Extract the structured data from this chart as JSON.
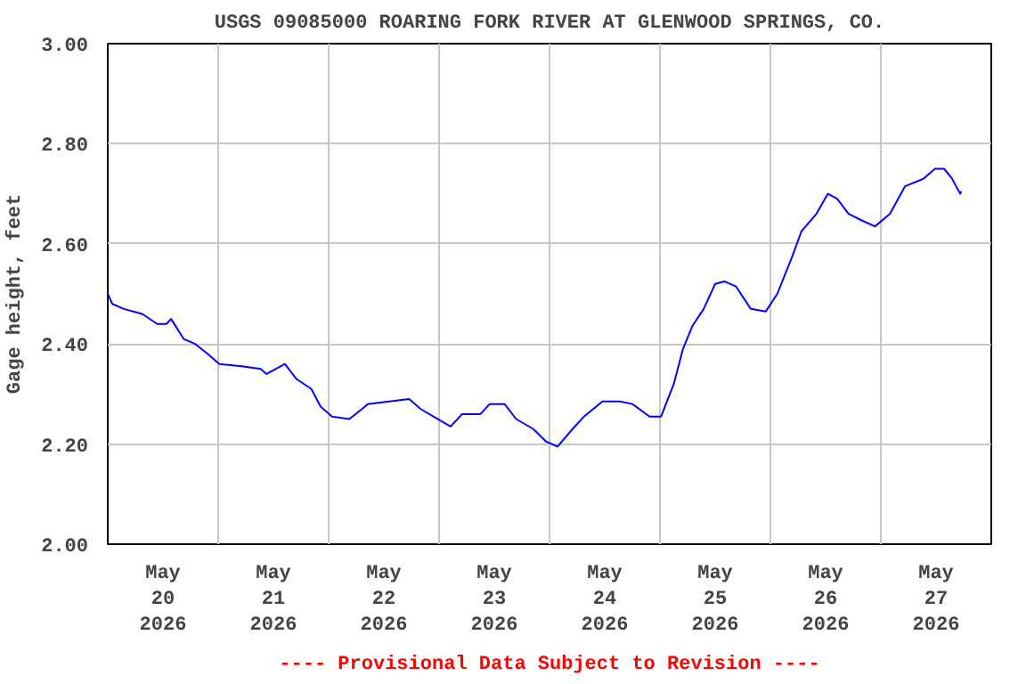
{
  "chart_data": {
    "type": "line",
    "title": "USGS 09085000 ROARING FORK RIVER AT GLENWOOD SPRINGS, CO.",
    "ylabel": "Gage height, feet",
    "annotations": [
      "---- Provisional Data Subject to Revision ----"
    ],
    "x": [
      "2026-05-20T00:00",
      "2026-05-20T01:00",
      "2026-05-20T03:30",
      "2026-05-20T07:30",
      "2026-05-20T10:45",
      "2026-05-20T12:45",
      "2026-05-20T13:45",
      "2026-05-20T16:30",
      "2026-05-20T19:00",
      "2026-05-20T21:45",
      "2026-05-21T00:15",
      "2026-05-21T05:30",
      "2026-05-21T09:15",
      "2026-05-21T10:30",
      "2026-05-21T14:30",
      "2026-05-21T17:00",
      "2026-05-21T20:15",
      "2026-05-21T22:15",
      "2026-05-22T00:45",
      "2026-05-22T04:30",
      "2026-05-22T07:15",
      "2026-05-22T08:30",
      "2026-05-22T17:30",
      "2026-05-22T20:00",
      "2026-05-22T22:45",
      "2026-05-23T02:30",
      "2026-05-23T05:00",
      "2026-05-23T09:00",
      "2026-05-23T11:00",
      "2026-05-23T14:15",
      "2026-05-23T16:45",
      "2026-05-23T20:30",
      "2026-05-23T23:15",
      "2026-05-24T01:45",
      "2026-05-24T05:00",
      "2026-05-24T07:30",
      "2026-05-24T11:30",
      "2026-05-24T15:15",
      "2026-05-24T18:00",
      "2026-05-24T21:45",
      "2026-05-25T00:15",
      "2026-05-25T03:00",
      "2026-05-25T05:00",
      "2026-05-25T07:00",
      "2026-05-25T09:30",
      "2026-05-25T12:00",
      "2026-05-25T14:00",
      "2026-05-25T16:30",
      "2026-05-25T19:45",
      "2026-05-25T23:00",
      "2026-05-26T01:30",
      "2026-05-26T04:45",
      "2026-05-26T06:45",
      "2026-05-26T10:00",
      "2026-05-26T12:30",
      "2026-05-26T14:30",
      "2026-05-26T17:00",
      "2026-05-26T20:15",
      "2026-05-26T22:45",
      "2026-05-27T02:00",
      "2026-05-27T05:15",
      "2026-05-27T09:15",
      "2026-05-27T11:45",
      "2026-05-27T13:45",
      "2026-05-27T15:30",
      "2026-05-27T17:15",
      "2026-05-27T17:30"
    ],
    "series": [
      {
        "color": "#0000ff",
        "values": [
          2.5,
          2.48,
          2.47,
          2.46,
          2.44,
          2.44,
          2.45,
          2.41,
          2.4,
          2.38,
          2.36,
          2.355,
          2.35,
          2.34,
          2.36,
          2.33,
          2.31,
          2.275,
          2.255,
          2.25,
          2.27,
          2.28,
          2.29,
          2.27,
          2.255,
          2.235,
          2.26,
          2.26,
          2.28,
          2.28,
          2.25,
          2.23,
          2.205,
          2.195,
          2.23,
          2.255,
          2.285,
          2.285,
          2.28,
          2.255,
          2.255,
          2.32,
          2.39,
          2.435,
          2.47,
          2.52,
          2.525,
          2.515,
          2.47,
          2.465,
          2.5,
          2.575,
          2.625,
          2.66,
          2.7,
          2.69,
          2.66,
          2.645,
          2.635,
          2.66,
          2.715,
          2.73,
          2.75,
          2.75,
          2.73,
          2.7,
          2.705
        ]
      }
    ],
    "xlim": [
      "2026-05-20T00:00",
      "2026-05-28T00:00"
    ],
    "xticks": [
      {
        "value": "2026-05-20T00:00",
        "label": null
      },
      {
        "value": "2026-05-20T12:00",
        "label": "May\n20\n2026"
      },
      {
        "value": "2026-05-21T00:00",
        "label": null
      },
      {
        "value": "2026-05-21T12:00",
        "label": "May\n21\n2026"
      },
      {
        "value": "2026-05-22T00:00",
        "label": null
      },
      {
        "value": "2026-05-22T12:00",
        "label": "May\n22\n2026"
      },
      {
        "value": "2026-05-23T00:00",
        "label": null
      },
      {
        "value": "2026-05-23T12:00",
        "label": "May\n23\n2026"
      },
      {
        "value": "2026-05-24T00:00",
        "label": null
      },
      {
        "value": "2026-05-24T12:00",
        "label": "May\n24\n2026"
      },
      {
        "value": "2026-05-25T00:00",
        "label": null
      },
      {
        "value": "2026-05-25T12:00",
        "label": "May\n25\n2026"
      },
      {
        "value": "2026-05-26T00:00",
        "label": null
      },
      {
        "value": "2026-05-26T12:00",
        "label": "May\n26\n2026"
      },
      {
        "value": "2026-05-27T00:00",
        "label": null
      },
      {
        "value": "2026-05-27T12:00",
        "label": "May\n27\n2026"
      },
      {
        "value": "2026-05-28T00:00",
        "label": null
      }
    ],
    "ylim": [
      2.0,
      3.0
    ],
    "yticks": [
      {
        "value": 2.0,
        "label": "2.00"
      },
      {
        "value": 2.2,
        "label": "2.20"
      },
      {
        "value": 2.4,
        "label": "2.40"
      },
      {
        "value": 2.6,
        "label": "2.60"
      },
      {
        "value": 2.8,
        "label": "2.80"
      },
      {
        "value": 3.0,
        "label": "3.00"
      }
    ],
    "grid": true,
    "marker": "none",
    "line_style": "solid"
  }
}
